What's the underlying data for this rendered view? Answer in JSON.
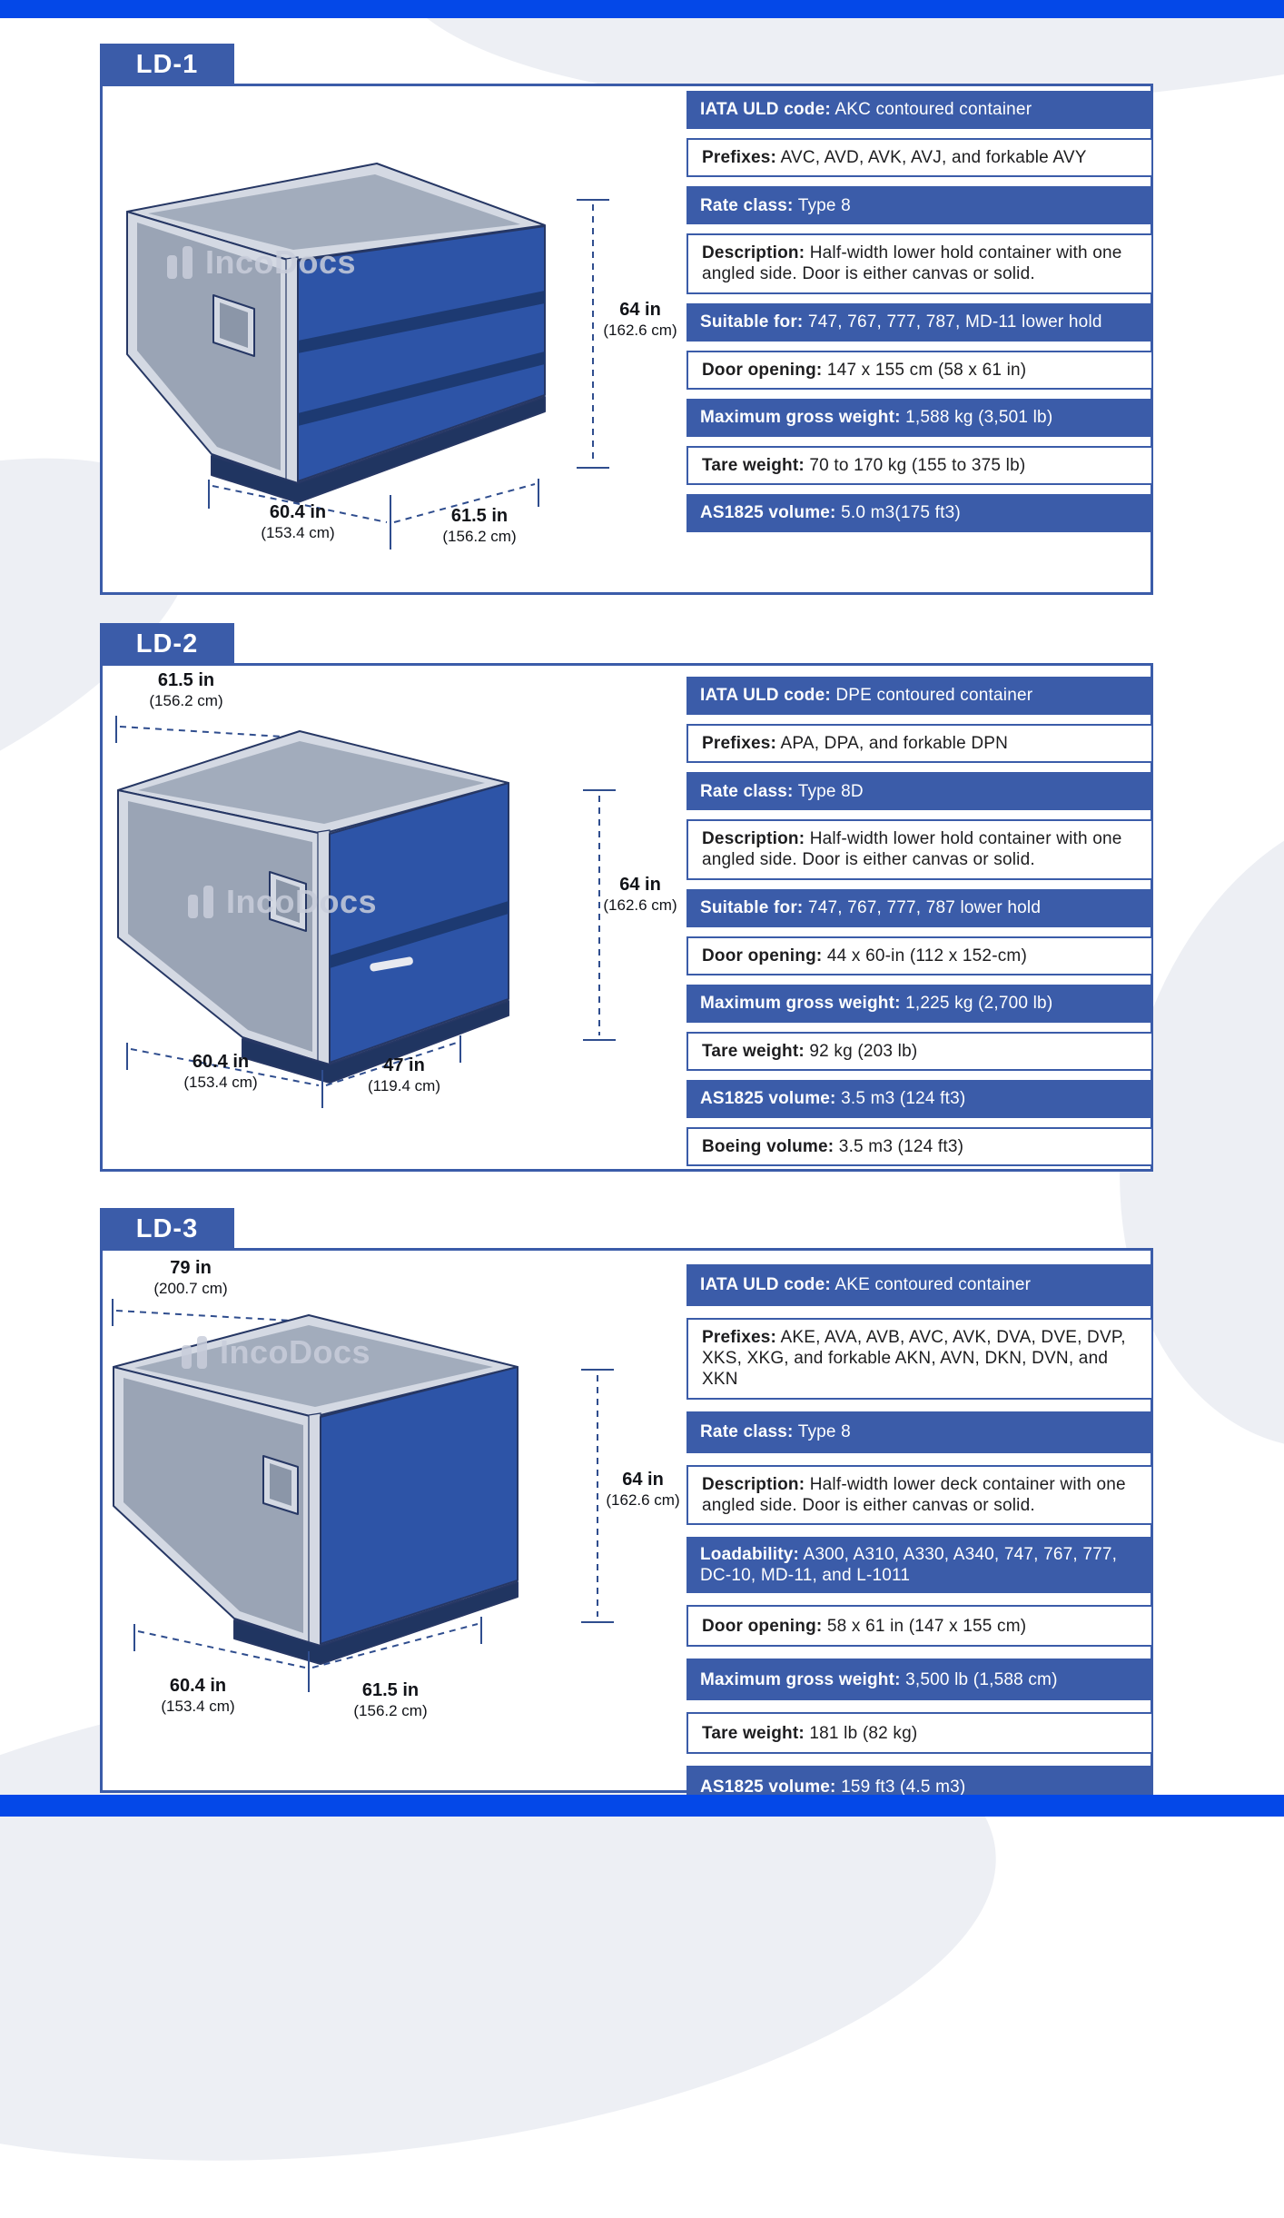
{
  "page": {
    "top_bar_color": "#0448e8",
    "footer_bar_color": "#0448e8",
    "accent_blue": "#3b5ca9",
    "door_blue": "#2d54a7",
    "watermark_text": "IncoDocs",
    "watermark_logo_icon": "incodocs-logo-icon"
  },
  "sections": [
    {
      "tab": "LD-1",
      "dims": {
        "height_in": "64 in",
        "height_cm": "(162.6 cm)",
        "bottom_left_in": "60.4 in",
        "bottom_left_cm": "(153.4 cm)",
        "bottom_right_in": "61.5 in",
        "bottom_right_cm": "(156.2 cm)"
      },
      "rows": [
        {
          "label": "IATA ULD code:",
          "value": "AKC contoured container"
        },
        {
          "label": "Prefixes:",
          "value": "AVC, AVD, AVK, AVJ, and forkable AVY"
        },
        {
          "label": "Rate class:",
          "value": "Type 8"
        },
        {
          "label": "Description:",
          "value": "Half-width lower hold container with one angled side. Door is either canvas or solid."
        },
        {
          "label": "Suitable for:",
          "value": "747, 767, 777, 787, MD-11 lower hold"
        },
        {
          "label": "Door opening:",
          "value": "147 x 155 cm (58 x 61 in)"
        },
        {
          "label": "Maximum gross weight:",
          "value": "1,588 kg (3,501 lb)"
        },
        {
          "label": "Tare weight:",
          "value": "70 to 170 kg (155 to 375 lb)"
        },
        {
          "label": "AS1825 volume:",
          "value": "5.0 m3(175 ft3)"
        }
      ]
    },
    {
      "tab": "LD-2",
      "dims": {
        "top_in": "61.5 in",
        "top_cm": "(156.2 cm)",
        "height_in": "64 in",
        "height_cm": "(162.6 cm)",
        "bottom_left_in": "60.4 in",
        "bottom_left_cm": "(153.4 cm)",
        "bottom_right_in": "47 in",
        "bottom_right_cm": "(119.4 cm)"
      },
      "rows": [
        {
          "label": "IATA ULD code:",
          "value": "DPE contoured container"
        },
        {
          "label": "Prefixes:",
          "value": "APA, DPA, and forkable DPN"
        },
        {
          "label": "Rate class:",
          "value": "Type 8D"
        },
        {
          "label": "Description:",
          "value": "Half-width lower hold container with one angled side. Door is either canvas or solid."
        },
        {
          "label": "Suitable for:",
          "value": "747, 767, 777, 787 lower hold"
        },
        {
          "label": "Door opening:",
          "value": "44 x 60-in (112 x 152-cm)"
        },
        {
          "label": "Maximum gross weight:",
          "value": "1,225 kg (2,700 lb)"
        },
        {
          "label": "Tare weight:",
          "value": "92 kg (203 lb)"
        },
        {
          "label": "AS1825 volume:",
          "value": "3.5 m3 (124 ft3)"
        },
        {
          "label": "Boeing volume:",
          "value": "3.5 m3 (124 ft3)"
        }
      ]
    },
    {
      "tab": "LD-3",
      "dims": {
        "top_in": "79 in",
        "top_cm": "(200.7 cm)",
        "height_in": "64 in",
        "height_cm": "(162.6 cm)",
        "bottom_left_in": "60.4 in",
        "bottom_left_cm": "(153.4 cm)",
        "bottom_right_in": "61.5 in",
        "bottom_right_cm": "(156.2 cm)"
      },
      "rows": [
        {
          "label": "IATA ULD code:",
          "value": "AKE contoured container"
        },
        {
          "label": "Prefixes:",
          "value": "AKE, AVA, AVB, AVC, AVK, DVA, DVE, DVP, XKS, XKG, and forkable AKN, AVN, DKN, DVN, and XKN"
        },
        {
          "label": "Rate class:",
          "value": "Type 8"
        },
        {
          "label": "Description:",
          "value": "Half-width lower deck container with one angled side. Door is either canvas or solid."
        },
        {
          "label": "Loadability:",
          "value": "A300, A310, A330, A340, 747, 767, 777, DC-10, MD-11, and L-1011"
        },
        {
          "label": "Door opening:",
          "value": "58 x 61 in (147 x 155 cm)"
        },
        {
          "label": "Maximum gross weight:",
          "value": "3,500 lb (1,588 cm)"
        },
        {
          "label": "Tare weight:",
          "value": "181 lb (82 kg)"
        },
        {
          "label": "AS1825 volume:",
          "value": "159 ft3 (4.5 m3)"
        }
      ]
    }
  ]
}
